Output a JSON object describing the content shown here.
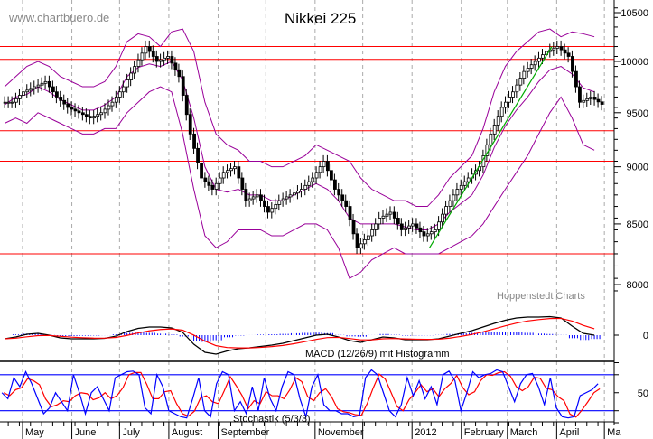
{
  "watermark": "www.chartbuero.de",
  "source": "Hoppenstedt Charts",
  "chart_data": [
    {
      "type": "candlestick",
      "title": "Nikkei 225",
      "y_scale": "log",
      "ylim": [
        7900,
        10600
      ],
      "y_ticks": [
        8000,
        8500,
        9000,
        9500,
        10000,
        10500
      ],
      "x_month_labels": [
        "May",
        "June",
        "July",
        "August",
        "September",
        "",
        "November",
        "",
        "2012",
        "February",
        "March",
        "April",
        "Ma"
      ],
      "x_month_dates": [
        "2011-05-01",
        "2011-06-01",
        "2011-07-01",
        "2011-08-01",
        "2011-09-01",
        "2011-10-01",
        "2011-11-01",
        "2011-12-01",
        "2012-01-01",
        "2012-02-01",
        "2012-03-01",
        "2012-04-01",
        "2012-05-01"
      ],
      "grid": "vertical dashed at month starts",
      "dates": [
        "2011-04-18",
        "2011-04-25",
        "2011-05-02",
        "2011-05-09",
        "2011-05-16",
        "2011-05-23",
        "2011-05-30",
        "2011-06-06",
        "2011-06-13",
        "2011-06-20",
        "2011-06-27",
        "2011-07-04",
        "2011-07-11",
        "2011-07-18",
        "2011-07-25",
        "2011-08-01",
        "2011-08-08",
        "2011-08-15",
        "2011-08-22",
        "2011-08-29",
        "2011-09-05",
        "2011-09-12",
        "2011-09-19",
        "2011-09-26",
        "2011-10-03",
        "2011-10-10",
        "2011-10-17",
        "2011-10-24",
        "2011-10-31",
        "2011-11-07",
        "2011-11-14",
        "2011-11-21",
        "2011-11-28",
        "2011-12-05",
        "2011-12-12",
        "2011-12-19",
        "2011-12-26",
        "2012-01-02",
        "2012-01-09",
        "2012-01-16",
        "2012-01-23",
        "2012-01-30",
        "2012-02-06",
        "2012-02-13",
        "2012-02-20",
        "2012-02-27",
        "2012-03-05",
        "2012-03-12",
        "2012-03-19",
        "2012-03-26",
        "2012-04-02",
        "2012-04-09",
        "2012-04-16",
        "2012-04-23"
      ],
      "close": [
        9600,
        9700,
        9750,
        9800,
        9650,
        9550,
        9500,
        9450,
        9500,
        9600,
        9750,
        9950,
        10150,
        10000,
        10050,
        9850,
        9300,
        8900,
        8800,
        8950,
        9000,
        8700,
        8750,
        8600,
        8700,
        8750,
        8800,
        8900,
        9050,
        8800,
        8650,
        8300,
        8400,
        8550,
        8600,
        8450,
        8500,
        8400,
        8450,
        8650,
        8800,
        8900,
        9000,
        9300,
        9550,
        9700,
        9900,
        10000,
        10100,
        10150,
        10050,
        9600,
        9650,
        9580
      ],
      "bollinger_upper": [
        9750,
        9850,
        9950,
        10000,
        9950,
        9850,
        9800,
        9750,
        9750,
        9800,
        9950,
        10200,
        10280,
        10250,
        10150,
        10300,
        10330,
        10100,
        9600,
        9300,
        9200,
        9150,
        9050,
        9050,
        9000,
        9000,
        9050,
        9100,
        9200,
        9150,
        9100,
        9050,
        8900,
        8800,
        8750,
        8700,
        8700,
        8650,
        8650,
        8750,
        8900,
        9000,
        9100,
        9350,
        9700,
        9950,
        10100,
        10200,
        10300,
        10330,
        10250,
        10300,
        10280,
        10250
      ],
      "bollinger_lower": [
        9400,
        9450,
        9400,
        9500,
        9450,
        9400,
        9350,
        9300,
        9300,
        9350,
        9350,
        9500,
        9600,
        9700,
        9750,
        9700,
        9300,
        8800,
        8400,
        8300,
        8350,
        8450,
        8450,
        8450,
        8400,
        8400,
        8450,
        8500,
        8500,
        8450,
        8300,
        8050,
        8100,
        8200,
        8250,
        8300,
        8250,
        8250,
        8250,
        8250,
        8300,
        8350,
        8400,
        8500,
        8650,
        8800,
        8950,
        9100,
        9300,
        9500,
        9650,
        9450,
        9200,
        9150
      ],
      "horizontal_lines": [
        10150,
        10020,
        9330,
        9050,
        8250
      ],
      "trendline": {
        "from": [
          "2012-01-12",
          8300
        ],
        "to": [
          "2012-03-29",
          10150
        ]
      },
      "colors": {
        "candle": "#000000",
        "bands": "#990099",
        "levels": "#ff0000",
        "trend": "#00aa00"
      }
    },
    {
      "type": "line",
      "label": "MACD (12/26/9) mit Histogramm",
      "y_ticks": [
        0
      ],
      "macd": [
        -80,
        -40,
        20,
        40,
        0,
        -60,
        -80,
        -80,
        -80,
        -70,
        -20,
        80,
        150,
        180,
        180,
        160,
        60,
        -200,
        -380,
        -420,
        -350,
        -300,
        -280,
        -250,
        -220,
        -180,
        -120,
        -60,
        0,
        20,
        -40,
        -120,
        -160,
        -100,
        -40,
        -60,
        -100,
        -100,
        -100,
        -80,
        -20,
        40,
        100,
        180,
        260,
        330,
        380,
        400,
        400,
        410,
        380,
        200,
        40,
        0
      ],
      "colors": {
        "macd": "#000000",
        "signal": "#ff0000",
        "histogram": "#0000ff"
      }
    },
    {
      "type": "line",
      "label": "Stochastik (5/3/3)",
      "y_ticks": [
        50
      ],
      "bands": [
        20,
        80
      ],
      "x_range": [
        "2011-04-18",
        "2012-04-27"
      ],
      "k": [
        50,
        40,
        75,
        60,
        85,
        65,
        40,
        15,
        25,
        50,
        35,
        20,
        80,
        50,
        15,
        50,
        60,
        40,
        20,
        75,
        80,
        85,
        86,
        80,
        25,
        15,
        80,
        60,
        20,
        15,
        10,
        8,
        40,
        75,
        20,
        10,
        65,
        85,
        80,
        20,
        35,
        15,
        60,
        20,
        75,
        40,
        20,
        60,
        85,
        80,
        40,
        10,
        60,
        80,
        30,
        20,
        20,
        15,
        15,
        10,
        12,
        75,
        88,
        80,
        50,
        20,
        10,
        30,
        75,
        45,
        70,
        40,
        60,
        30,
        80,
        86,
        70,
        20,
        50,
        85,
        75,
        80,
        82,
        88,
        85,
        60,
        35,
        65,
        80,
        82,
        60,
        30,
        75,
        25,
        10,
        8,
        10,
        45,
        50,
        55,
        65
      ],
      "colors": {
        "k": "#0000ff",
        "d": "#ff0000",
        "bands": "#0000ff"
      }
    }
  ]
}
